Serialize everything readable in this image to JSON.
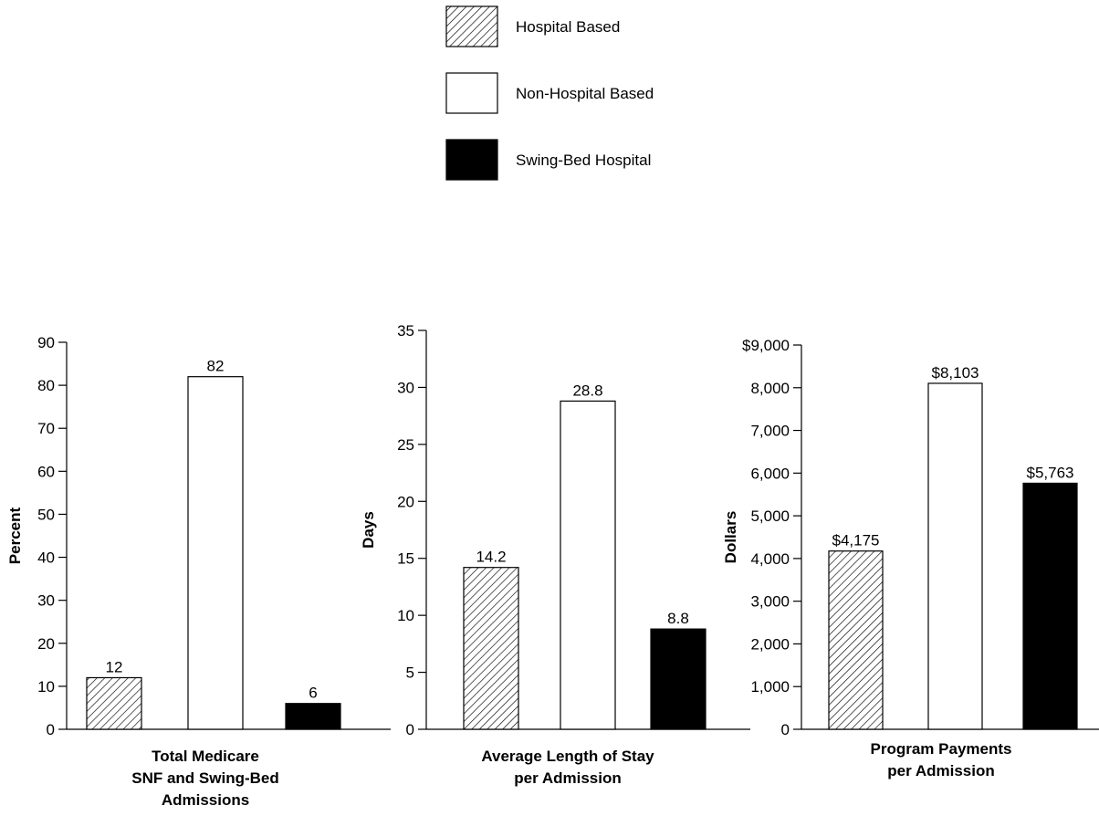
{
  "legend": [
    {
      "name": "Hospital Based",
      "fill": "hatch"
    },
    {
      "name": "Non-Hospital Based",
      "fill": "#ffffff"
    },
    {
      "name": "Swing-Bed Hospital",
      "fill": "#000000"
    }
  ],
  "chart_data": [
    {
      "type": "bar",
      "categories": [
        "Hospital Based",
        "Non-Hospital Based",
        "Swing-Bed Hospital"
      ],
      "values": [
        12,
        82,
        6
      ],
      "value_labels": [
        "12",
        "82",
        "6"
      ],
      "ylabel": "Percent",
      "xlabel_lines": [
        "Total Medicare",
        "SNF and Swing-Bed",
        "Admissions"
      ],
      "ylim": [
        0,
        90
      ],
      "ticks": [
        0,
        10,
        20,
        30,
        40,
        50,
        60,
        70,
        80,
        90
      ],
      "tick_labels": [
        "0",
        "10",
        "20",
        "30",
        "40",
        "50",
        "60",
        "70",
        "80",
        "90"
      ]
    },
    {
      "type": "bar",
      "categories": [
        "Hospital Based",
        "Non-Hospital Based",
        "Swing-Bed Hospital"
      ],
      "values": [
        14.2,
        28.8,
        8.8
      ],
      "value_labels": [
        "14.2",
        "28.8",
        "8.8"
      ],
      "ylabel": "Days",
      "xlabel_lines": [
        "Average Length of Stay",
        "per Admission"
      ],
      "ylim": [
        0,
        35
      ],
      "ticks": [
        0,
        5,
        10,
        15,
        20,
        25,
        30,
        35
      ],
      "tick_labels": [
        "0",
        "5",
        "10",
        "15",
        "20",
        "25",
        "30",
        "35"
      ]
    },
    {
      "type": "bar",
      "categories": [
        "Hospital Based",
        "Non-Hospital Based",
        "Swing-Bed Hospital"
      ],
      "values": [
        4175,
        8103,
        5763
      ],
      "value_labels": [
        "$4,175",
        "$8,103",
        "$5,763"
      ],
      "ylabel": "Dollars",
      "xlabel_lines": [
        "Program Payments",
        "per Admission"
      ],
      "ylim": [
        0,
        9000
      ],
      "ticks": [
        0,
        1000,
        2000,
        3000,
        4000,
        5000,
        6000,
        7000,
        8000,
        9000
      ],
      "tick_labels": [
        "0",
        "1,000",
        "2,000",
        "3,000",
        "4,000",
        "5,000",
        "6,000",
        "7,000",
        "8,000",
        "$9,000"
      ]
    }
  ]
}
